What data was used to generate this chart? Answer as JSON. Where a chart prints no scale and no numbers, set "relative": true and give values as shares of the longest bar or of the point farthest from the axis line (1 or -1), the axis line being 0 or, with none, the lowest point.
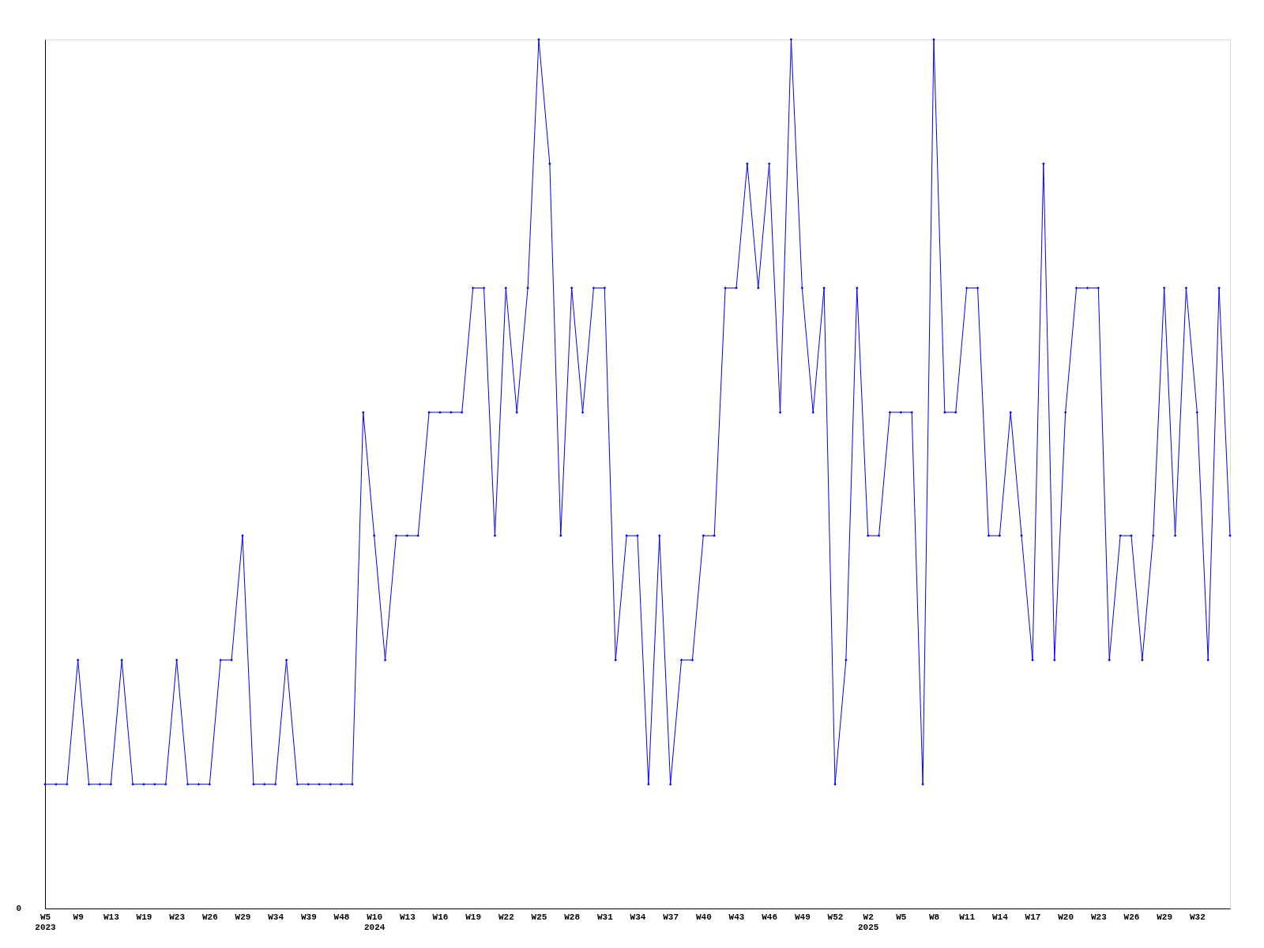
{
  "chart_data": {
    "type": "line",
    "relative": true,
    "color": "#0000ff",
    "marker": "diamond",
    "line_style": "solid",
    "grid": false,
    "categories": [
      "W5\n2023",
      null,
      null,
      "W9",
      null,
      null,
      "W13",
      null,
      null,
      "W19",
      null,
      null,
      "W23",
      null,
      null,
      "W26",
      null,
      null,
      "W29",
      null,
      null,
      "W34",
      null,
      null,
      "W39",
      null,
      null,
      "W48",
      null,
      null,
      "W10\n2024",
      null,
      null,
      "W13",
      null,
      null,
      "W16",
      null,
      null,
      "W19",
      null,
      null,
      "W22",
      null,
      null,
      "W25",
      null,
      null,
      "W28",
      null,
      null,
      "W31",
      null,
      null,
      "W34",
      null,
      null,
      "W37",
      null,
      null,
      "W40",
      null,
      null,
      "W43",
      null,
      null,
      "W46",
      null,
      null,
      "W49",
      null,
      null,
      "W52",
      null,
      null,
      "W2\n2025",
      null,
      null,
      "W5",
      null,
      null,
      "W8",
      null,
      null,
      "W11",
      null,
      null,
      "W14",
      null,
      null,
      "W17",
      null,
      null,
      "W20",
      null,
      null,
      "W23",
      null,
      null,
      "W26",
      null,
      null,
      "W29",
      null,
      null,
      "W32",
      null,
      null,
      null
    ],
    "values": [
      0.143,
      0.143,
      0.143,
      0.286,
      0.143,
      0.143,
      0.143,
      0.286,
      0.143,
      0.143,
      0.143,
      0.143,
      0.286,
      0.143,
      0.143,
      0.143,
      0.286,
      0.286,
      0.429,
      0.143,
      0.143,
      0.143,
      0.286,
      0.143,
      0.143,
      0.143,
      0.143,
      0.143,
      0.143,
      0.571,
      0.429,
      0.286,
      0.429,
      0.429,
      0.429,
      0.571,
      0.571,
      0.571,
      0.571,
      0.714,
      0.714,
      0.429,
      0.714,
      0.571,
      0.714,
      1,
      0.857,
      0.429,
      0.714,
      0.571,
      0.714,
      0.714,
      0.286,
      0.429,
      0.429,
      0.143,
      0.429,
      0.143,
      0.286,
      0.286,
      0.429,
      0.429,
      0.714,
      0.714,
      0.857,
      0.714,
      0.857,
      0.571,
      1,
      0.714,
      0.571,
      0.714,
      0.143,
      0.286,
      0.714,
      0.429,
      0.429,
      0.571,
      0.571,
      0.571,
      0.143,
      1,
      0.571,
      0.571,
      0.714,
      0.714,
      0.429,
      0.429,
      0.571,
      0.429,
      0.286,
      0.857,
      0.286,
      0.571,
      0.714,
      0.714,
      0.714,
      0.286,
      0.429,
      0.429,
      0.286,
      0.429,
      0.714,
      0.429,
      0.714,
      0.571,
      0.286,
      0.714,
      0.429
    ],
    "annotations": [
      "0"
    ]
  }
}
